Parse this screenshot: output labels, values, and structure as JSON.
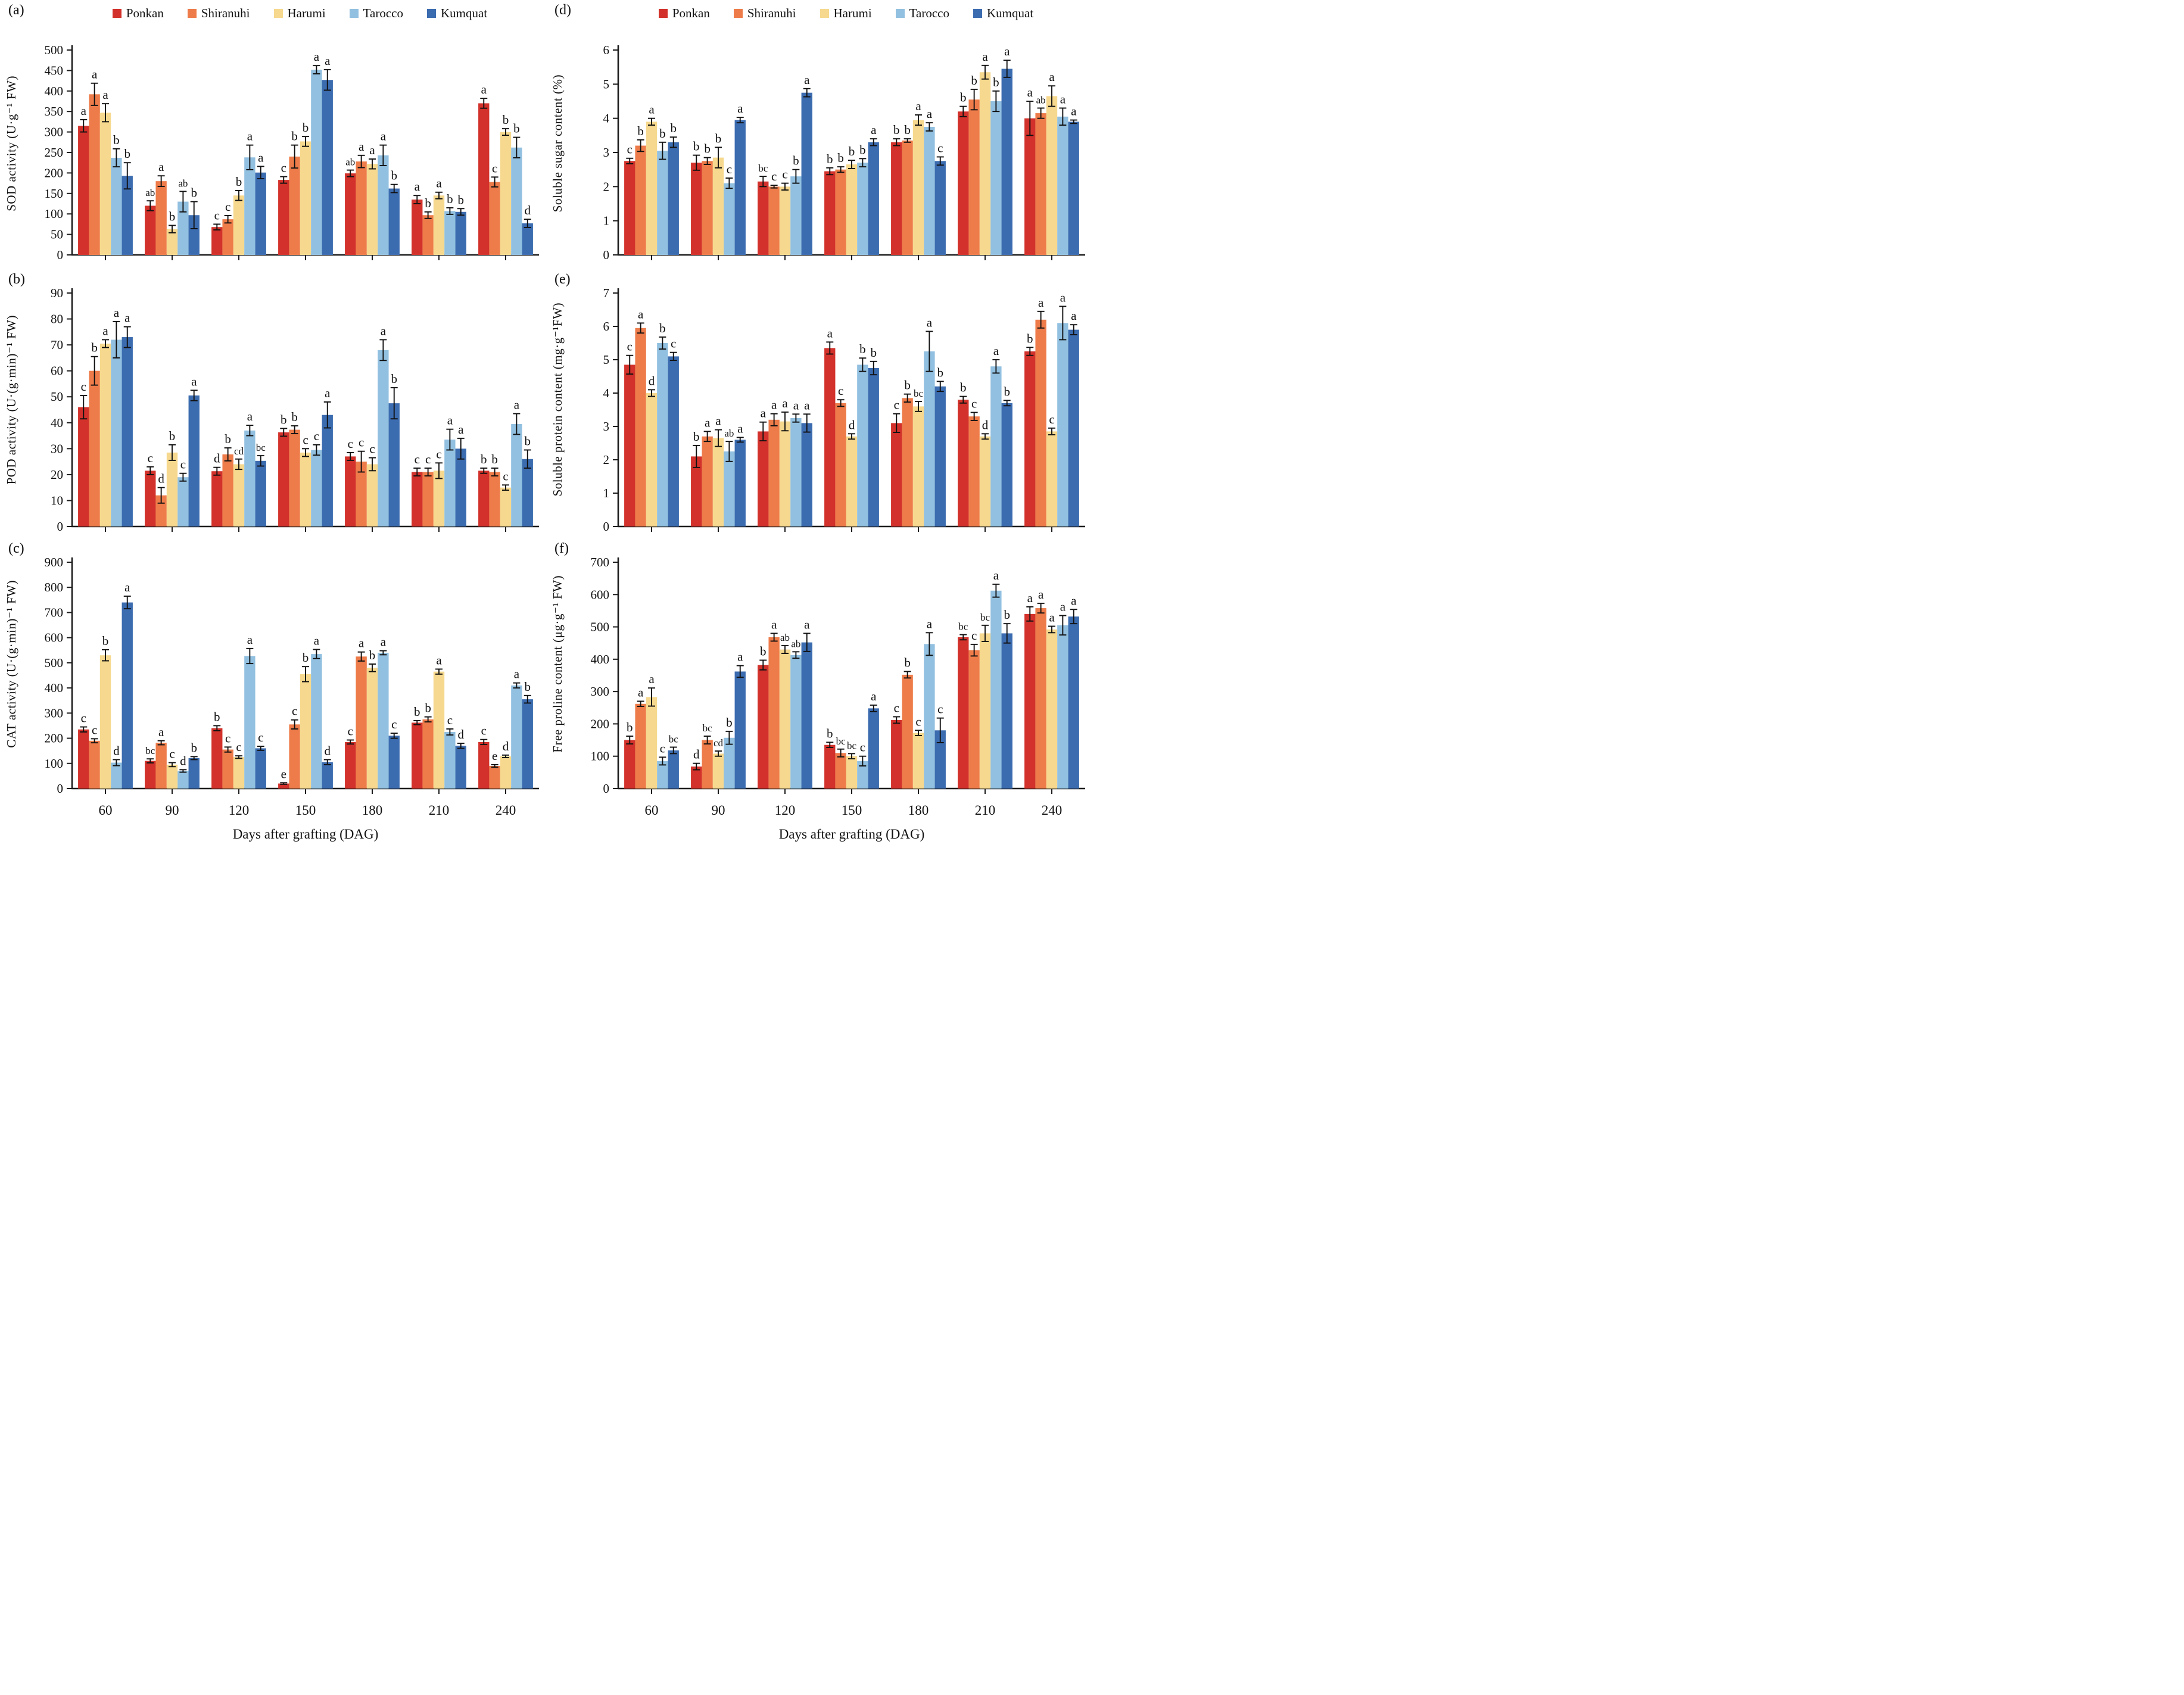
{
  "figure": {
    "xlabel": "Days after grafting (DAG)",
    "categories": [
      "60",
      "90",
      "120",
      "150",
      "180",
      "210",
      "240"
    ],
    "legend": [
      {
        "name": "Ponkan",
        "color": "#d2322b"
      },
      {
        "name": "Shiranuhi",
        "color": "#ee7c4a"
      },
      {
        "name": "Harumi",
        "color": "#f6d98e"
      },
      {
        "name": "Tarocco",
        "color": "#92c0e0"
      },
      {
        "name": "Kumquat",
        "color": "#3c6cb0"
      }
    ],
    "axis_color": "#1c1c1c",
    "error_bar_color": "#111111"
  },
  "chart_data": [
    {
      "tag": "(a)",
      "type": "bar",
      "ylabel": "SOD activity (U·g⁻¹ FW)",
      "xlabel": "Days after grafting (DAG)",
      "ylim": [
        0,
        500
      ],
      "ystep": 50,
      "grid": false,
      "legend_position": "top",
      "show_legend": true,
      "show_xticklabels": false,
      "categories": [
        "60",
        "90",
        "120",
        "150",
        "180",
        "210",
        "240"
      ],
      "series": [
        {
          "name": "Ponkan",
          "values": [
            315,
            120,
            68,
            183,
            199,
            135,
            370
          ],
          "errors": [
            15,
            12,
            7,
            8,
            8,
            10,
            12
          ],
          "letters": [
            "a",
            "ab",
            "c",
            "c",
            "ab",
            "a",
            "a"
          ]
        },
        {
          "name": "Shiranuhi",
          "values": [
            392,
            180,
            87,
            240,
            228,
            97,
            178
          ],
          "errors": [
            27,
            13,
            9,
            28,
            15,
            8,
            12
          ],
          "letters": [
            "a",
            "a",
            "c",
            "b",
            "a",
            "b",
            "c"
          ]
        },
        {
          "name": "Harumi",
          "values": [
            347,
            63,
            145,
            277,
            222,
            145,
            300
          ],
          "errors": [
            22,
            9,
            12,
            12,
            12,
            8,
            8
          ],
          "letters": [
            "a",
            "b",
            "b",
            "b",
            "a",
            "a",
            "b"
          ]
        },
        {
          "name": "Tarocco",
          "values": [
            237,
            130,
            238,
            452,
            243,
            107,
            262
          ],
          "errors": [
            22,
            25,
            30,
            10,
            25,
            8,
            25
          ],
          "letters": [
            "b",
            "ab",
            "a",
            "a",
            "a",
            "b",
            "b"
          ]
        },
        {
          "name": "Kumquat",
          "values": [
            193,
            97,
            201,
            427,
            162,
            105,
            77
          ],
          "errors": [
            32,
            33,
            15,
            25,
            10,
            8,
            10
          ],
          "letters": [
            "b",
            "b",
            "a",
            "a",
            "b",
            "b",
            "d"
          ]
        }
      ]
    },
    {
      "tag": "(b)",
      "type": "bar",
      "ylabel": "POD activity (U·(g·min)⁻¹ FW)",
      "xlabel": "Days after grafting (DAG)",
      "ylim": [
        0,
        90
      ],
      "ystep": 10,
      "grid": false,
      "legend_position": "none",
      "show_legend": false,
      "show_xticklabels": false,
      "categories": [
        "60",
        "90",
        "120",
        "150",
        "180",
        "210",
        "240"
      ],
      "series": [
        {
          "name": "Ponkan",
          "values": [
            46,
            21.5,
            21.3,
            36.3,
            27,
            21,
            21.5
          ],
          "errors": [
            4.5,
            1.5,
            1.5,
            1.5,
            1.5,
            1.5,
            1
          ],
          "letters": [
            "c",
            "c",
            "d",
            "b",
            "c",
            "c",
            "b"
          ]
        },
        {
          "name": "Shiranuhi",
          "values": [
            60,
            12,
            27.8,
            37.3,
            25,
            21,
            21
          ],
          "errors": [
            5.5,
            3,
            2.5,
            1.5,
            4,
            1.5,
            1.5
          ],
          "letters": [
            "b",
            "d",
            "b",
            "b",
            "c",
            "c",
            "b"
          ]
        },
        {
          "name": "Harumi",
          "values": [
            70.5,
            28.5,
            24,
            28.5,
            24,
            21.5,
            15
          ],
          "errors": [
            1.5,
            3,
            2,
            1.5,
            2.5,
            3,
            1
          ],
          "letters": [
            "a",
            "b",
            "cd",
            "c",
            "c",
            "c",
            "c"
          ]
        },
        {
          "name": "Tarocco",
          "values": [
            72,
            19,
            37,
            29.5,
            68,
            33.5,
            39.5
          ],
          "errors": [
            7,
            1.5,
            2,
            2,
            4,
            4,
            4
          ],
          "letters": [
            "a",
            "c",
            "a",
            "c",
            "a",
            "a",
            "a"
          ]
        },
        {
          "name": "Kumquat",
          "values": [
            73,
            50.5,
            25.3,
            43,
            47.5,
            30,
            26
          ],
          "errors": [
            4,
            2,
            2,
            5,
            6,
            4,
            3.5
          ],
          "letters": [
            "a",
            "a",
            "bc",
            "a",
            "b",
            "a",
            "b"
          ]
        }
      ]
    },
    {
      "tag": "(c)",
      "type": "bar",
      "ylabel": "CAT activity (U·(g·min)⁻¹ FW)",
      "xlabel": "Days after grafting (DAG)",
      "ylim": [
        0,
        900
      ],
      "ystep": 100,
      "grid": false,
      "legend_position": "none",
      "show_legend": false,
      "show_xticklabels": true,
      "categories": [
        "60",
        "90",
        "120",
        "150",
        "180",
        "210",
        "240"
      ],
      "series": [
        {
          "name": "Ponkan",
          "values": [
            235,
            110,
            240,
            20,
            185,
            262,
            185
          ],
          "errors": [
            10,
            8,
            10,
            3,
            8,
            8,
            10
          ],
          "letters": [
            "c",
            "bc",
            "b",
            "e",
            "c",
            "b",
            "c"
          ]
        },
        {
          "name": "Shiranuhi",
          "values": [
            190,
            182,
            155,
            255,
            525,
            275,
            90
          ],
          "errors": [
            8,
            8,
            10,
            18,
            18,
            10,
            5
          ],
          "letters": [
            "c",
            "a",
            "c",
            "c",
            "a",
            "b",
            "e"
          ]
        },
        {
          "name": "Harumi",
          "values": [
            530,
            95,
            125,
            455,
            480,
            465,
            128
          ],
          "errors": [
            22,
            8,
            5,
            30,
            15,
            10,
            5
          ],
          "letters": [
            "b",
            "c",
            "c",
            "b",
            "b",
            "a",
            "d"
          ]
        },
        {
          "name": "Tarocco",
          "values": [
            103,
            70,
            527,
            535,
            540,
            225,
            410
          ],
          "errors": [
            12,
            5,
            30,
            18,
            8,
            12,
            10
          ],
          "letters": [
            "d",
            "d",
            "a",
            "a",
            "a",
            "c",
            "a"
          ]
        },
        {
          "name": "Kumquat",
          "values": [
            740,
            121,
            160,
            105,
            210,
            170,
            355
          ],
          "errors": [
            25,
            6,
            8,
            10,
            10,
            10,
            15
          ],
          "letters": [
            "a",
            "b",
            "c",
            "d",
            "c",
            "d",
            "b"
          ]
        }
      ]
    },
    {
      "tag": "(d)",
      "type": "bar",
      "ylabel": "Soluble sugar content (%)",
      "xlabel": "Days after grafting (DAG)",
      "ylim": [
        0,
        6
      ],
      "ystep": 1,
      "grid": false,
      "legend_position": "top",
      "show_legend": true,
      "show_xticklabels": false,
      "categories": [
        "60",
        "90",
        "120",
        "150",
        "180",
        "210",
        "240"
      ],
      "series": [
        {
          "name": "Ponkan",
          "values": [
            2.75,
            2.7,
            2.15,
            2.45,
            3.3,
            4.2,
            4.0
          ],
          "errors": [
            0.08,
            0.22,
            0.15,
            0.1,
            0.1,
            0.15,
            0.5
          ],
          "letters": [
            "c",
            "b",
            "bc",
            "b",
            "b",
            "b",
            "a"
          ]
        },
        {
          "name": "Shiranuhi",
          "values": [
            3.2,
            2.75,
            2.0,
            2.5,
            3.35,
            4.55,
            4.15
          ],
          "errors": [
            0.17,
            0.1,
            0.04,
            0.08,
            0.05,
            0.3,
            0.15
          ],
          "letters": [
            "b",
            "b",
            "c",
            "b",
            "b",
            "b",
            "ab"
          ]
        },
        {
          "name": "Harumi",
          "values": [
            3.9,
            2.85,
            2.0,
            2.65,
            3.95,
            5.35,
            4.65
          ],
          "errors": [
            0.1,
            0.3,
            0.1,
            0.12,
            0.15,
            0.2,
            0.3
          ],
          "letters": [
            "a",
            "b",
            "c",
            "b",
            "a",
            "a",
            "a"
          ]
        },
        {
          "name": "Tarocco",
          "values": [
            3.05,
            2.1,
            2.3,
            2.7,
            3.75,
            4.5,
            4.05
          ],
          "errors": [
            0.25,
            0.15,
            0.2,
            0.12,
            0.12,
            0.3,
            0.25
          ],
          "letters": [
            "b",
            "c",
            "b",
            "b",
            "a",
            "b",
            "a"
          ]
        },
        {
          "name": "Kumquat",
          "values": [
            3.3,
            3.95,
            4.75,
            3.3,
            2.75,
            5.45,
            3.9
          ],
          "errors": [
            0.15,
            0.08,
            0.12,
            0.1,
            0.12,
            0.25,
            0.05
          ],
          "letters": [
            "b",
            "a",
            "a",
            "a",
            "c",
            "a",
            "a"
          ]
        }
      ]
    },
    {
      "tag": "(e)",
      "type": "bar",
      "ylabel": "Soluble protein content (mg·g⁻¹FW)",
      "xlabel": "Days after grafting (DAG)",
      "ylim": [
        0,
        7
      ],
      "ystep": 1,
      "grid": false,
      "legend_position": "none",
      "show_legend": false,
      "show_xticklabels": false,
      "categories": [
        "60",
        "90",
        "120",
        "150",
        "180",
        "210",
        "240"
      ],
      "series": [
        {
          "name": "Ponkan",
          "values": [
            4.85,
            2.1,
            2.85,
            5.35,
            3.1,
            3.8,
            5.25
          ],
          "errors": [
            0.28,
            0.33,
            0.28,
            0.18,
            0.28,
            0.1,
            0.12
          ],
          "letters": [
            "c",
            "b",
            "a",
            "a",
            "c",
            "b",
            "b"
          ]
        },
        {
          "name": "Shiranuhi",
          "values": [
            5.95,
            2.7,
            3.2,
            3.7,
            3.85,
            3.3,
            6.2
          ],
          "errors": [
            0.15,
            0.15,
            0.18,
            0.1,
            0.12,
            0.12,
            0.25
          ],
          "letters": [
            "a",
            "a",
            "a",
            "c",
            "b",
            "c",
            "a"
          ]
        },
        {
          "name": "Harumi",
          "values": [
            4.0,
            2.65,
            3.15,
            2.7,
            3.6,
            2.7,
            2.85
          ],
          "errors": [
            0.1,
            0.25,
            0.28,
            0.08,
            0.15,
            0.08,
            0.1
          ],
          "letters": [
            "d",
            "a",
            "a",
            "d",
            "bc",
            "d",
            "c"
          ]
        },
        {
          "name": "Tarocco",
          "values": [
            5.5,
            2.25,
            3.25,
            4.85,
            5.25,
            4.8,
            6.1
          ],
          "errors": [
            0.18,
            0.3,
            0.12,
            0.2,
            0.6,
            0.2,
            0.5
          ],
          "letters": [
            "b",
            "ab",
            "a",
            "b",
            "a",
            "a",
            "a"
          ]
        },
        {
          "name": "Kumquat",
          "values": [
            5.1,
            2.6,
            3.1,
            4.75,
            4.2,
            3.7,
            5.9
          ],
          "errors": [
            0.12,
            0.07,
            0.27,
            0.2,
            0.15,
            0.08,
            0.15
          ],
          "letters": [
            "c",
            "a",
            "a",
            "b",
            "b",
            "b",
            "a"
          ]
        }
      ]
    },
    {
      "tag": "(f)",
      "type": "bar",
      "ylabel": "Free proline content (μg·g⁻¹ FW)",
      "xlabel": "Days after grafting (DAG)",
      "ylim": [
        0,
        700
      ],
      "ystep": 100,
      "grid": false,
      "legend_position": "none",
      "show_legend": false,
      "show_xticklabels": true,
      "categories": [
        "60",
        "90",
        "120",
        "150",
        "180",
        "210",
        "240"
      ],
      "series": [
        {
          "name": "Ponkan",
          "values": [
            150,
            68,
            382,
            135,
            212,
            468,
            540
          ],
          "errors": [
            12,
            10,
            15,
            8,
            10,
            8,
            22
          ],
          "letters": [
            "b",
            "d",
            "b",
            "b",
            "c",
            "bc",
            "a"
          ]
        },
        {
          "name": "Shiranuhi",
          "values": [
            262,
            150,
            468,
            110,
            352,
            428,
            558
          ],
          "errors": [
            8,
            12,
            12,
            12,
            10,
            18,
            15
          ],
          "letters": [
            "a",
            "bc",
            "a",
            "bc",
            "b",
            "c",
            "a"
          ]
        },
        {
          "name": "Harumi",
          "values": [
            283,
            108,
            430,
            100,
            172,
            480,
            492
          ],
          "errors": [
            28,
            8,
            12,
            8,
            8,
            25,
            10
          ],
          "letters": [
            "a",
            "cd",
            "ab",
            "bc",
            "c",
            "bc",
            "a"
          ]
        },
        {
          "name": "Tarocco",
          "values": [
            85,
            157,
            413,
            85,
            447,
            612,
            505
          ],
          "errors": [
            12,
            20,
            10,
            15,
            35,
            20,
            30
          ],
          "letters": [
            "c",
            "b",
            "ab",
            "c",
            "a",
            "a",
            "a"
          ]
        },
        {
          "name": "Kumquat",
          "values": [
            118,
            362,
            452,
            248,
            180,
            480,
            532
          ],
          "errors": [
            10,
            18,
            28,
            10,
            38,
            30,
            22
          ],
          "letters": [
            "bc",
            "a",
            "a",
            "a",
            "c",
            "b",
            "a"
          ]
        }
      ]
    }
  ]
}
